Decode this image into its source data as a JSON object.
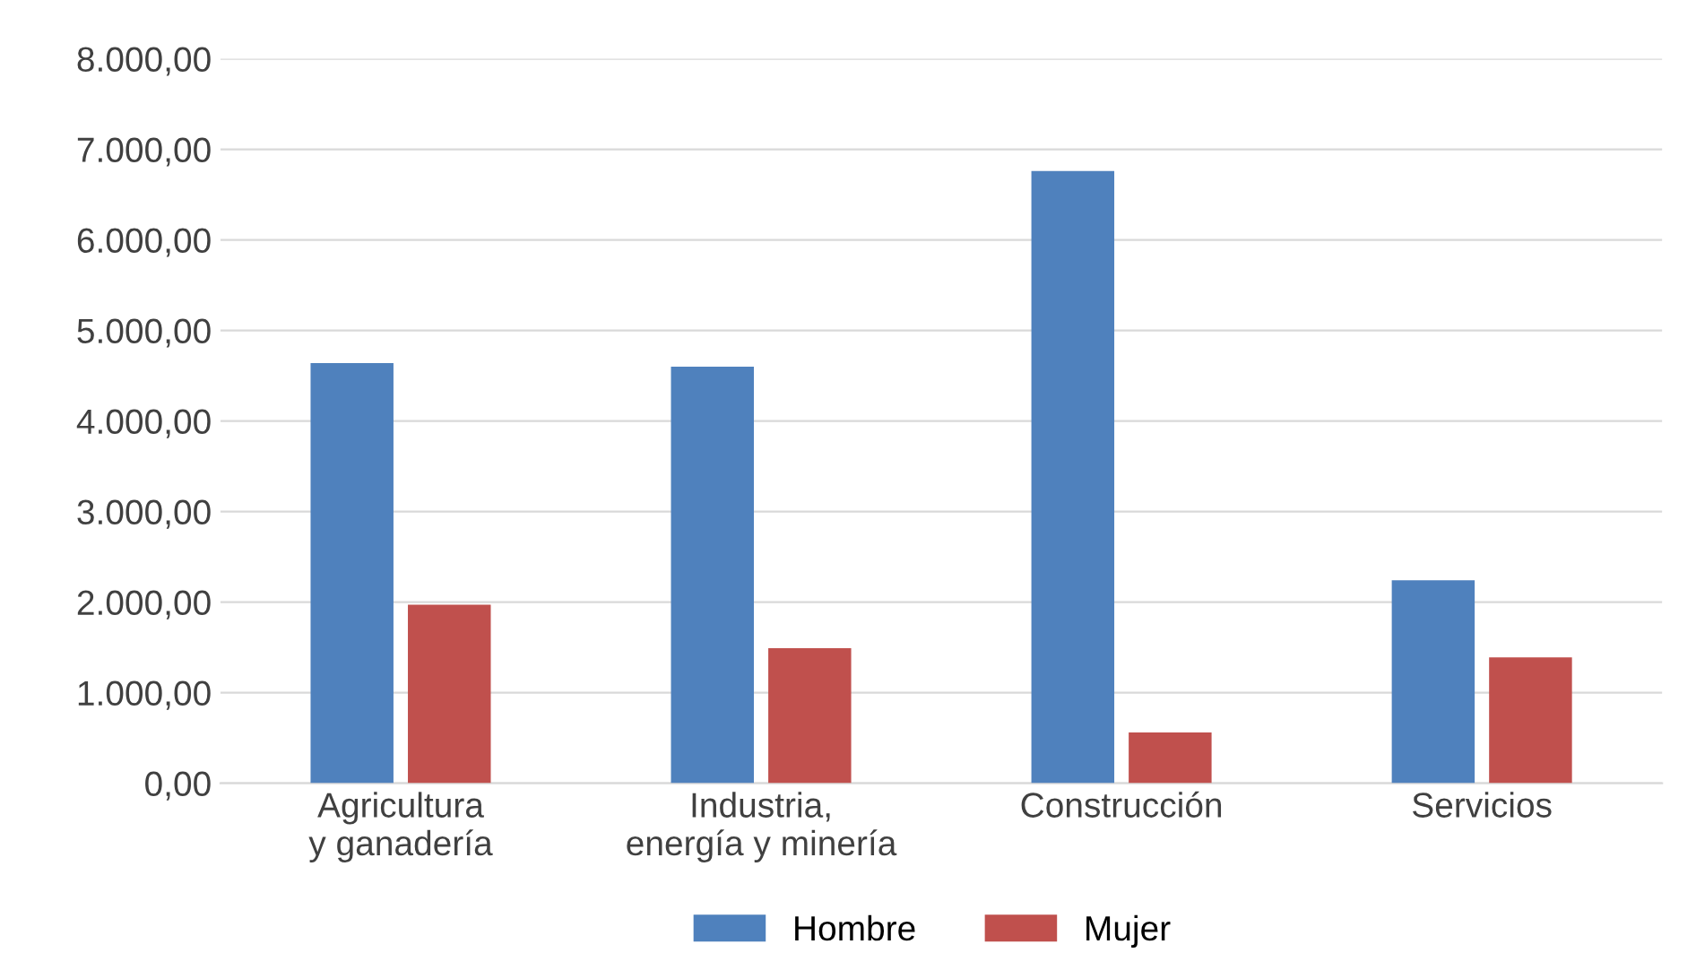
{
  "chart_data": {
    "type": "bar",
    "categories": [
      "Agricultura y ganadería",
      "Industria, energía y minería",
      "Construcción",
      "Servicios"
    ],
    "series": [
      {
        "name": "Hombre",
        "color": "#4f81bd",
        "values": [
          4640,
          4600,
          6760,
          2240
        ]
      },
      {
        "name": "Mujer",
        "color": "#c0504d",
        "values": [
          1970,
          1490,
          560,
          1390
        ]
      }
    ],
    "ylim": [
      0,
      8000
    ],
    "yticks": [
      {
        "value": 0,
        "label": "0,00"
      },
      {
        "value": 1000,
        "label": "1.000,00"
      },
      {
        "value": 2000,
        "label": "2.000,00"
      },
      {
        "value": 3000,
        "label": "3.000,00"
      },
      {
        "value": 4000,
        "label": "4.000,00"
      },
      {
        "value": 5000,
        "label": "5.000,00"
      },
      {
        "value": 6000,
        "label": "6.000,00"
      },
      {
        "value": 7000,
        "label": "7.000,00"
      },
      {
        "value": 8000,
        "label": "8.000,00"
      }
    ],
    "grid": "y",
    "legend": "bottom"
  }
}
